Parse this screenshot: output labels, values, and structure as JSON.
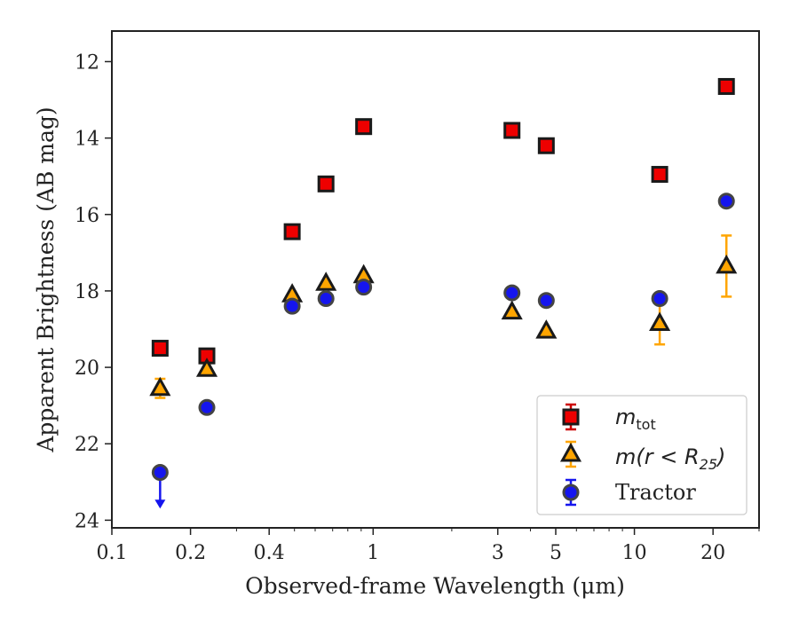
{
  "chart_data": {
    "type": "scatter",
    "title": "",
    "xlabel": "Observed-frame Wavelength (μm)",
    "ylabel": "Apparent Brightness (AB mag)",
    "x_scale": "log",
    "xlim": [
      0.1,
      30
    ],
    "ylim": [
      24.2,
      11.2
    ],
    "y_inverted": true,
    "grid": false,
    "legend_position": "lower-right",
    "x_ticks": [
      {
        "value": 0.1,
        "label": "0.1"
      },
      {
        "value": 0.2,
        "label": "0.2"
      },
      {
        "value": 0.4,
        "label": "0.4"
      },
      {
        "value": 1,
        "label": "1"
      },
      {
        "value": 3,
        "label": "3"
      },
      {
        "value": 5,
        "label": "5"
      },
      {
        "value": 10,
        "label": "10"
      },
      {
        "value": 20,
        "label": "20"
      }
    ],
    "y_ticks": [
      {
        "value": 12,
        "label": "12"
      },
      {
        "value": 14,
        "label": "14"
      },
      {
        "value": 16,
        "label": "16"
      },
      {
        "value": 18,
        "label": "18"
      },
      {
        "value": 20,
        "label": "20"
      },
      {
        "value": 22,
        "label": "22"
      },
      {
        "value": 24,
        "label": "24"
      }
    ],
    "series": [
      {
        "name_main": "m",
        "name_sub": "tot",
        "marker": "square",
        "color": "#ee0000",
        "error_color": "#cc0000",
        "points": [
          {
            "x": 0.153,
            "y": 19.5
          },
          {
            "x": 0.231,
            "y": 19.7
          },
          {
            "x": 0.49,
            "y": 16.45
          },
          {
            "x": 0.66,
            "y": 15.2
          },
          {
            "x": 0.92,
            "y": 13.7
          },
          {
            "x": 3.4,
            "y": 13.8
          },
          {
            "x": 4.6,
            "y": 14.2
          },
          {
            "x": 12.5,
            "y": 14.95
          },
          {
            "x": 22.5,
            "y": 12.65
          }
        ]
      },
      {
        "name_main": "m(r < R",
        "name_sub": "25",
        "name_tail": ")",
        "marker": "triangle",
        "color": "#ffa500",
        "error_color": "#ffa500",
        "points": [
          {
            "x": 0.153,
            "y": 20.55,
            "yerr": 0.25
          },
          {
            "x": 0.231,
            "y": 20.05
          },
          {
            "x": 0.49,
            "y": 18.1
          },
          {
            "x": 0.66,
            "y": 17.8
          },
          {
            "x": 0.92,
            "y": 17.6
          },
          {
            "x": 3.4,
            "y": 18.55
          },
          {
            "x": 4.6,
            "y": 19.05
          },
          {
            "x": 12.5,
            "y": 18.85,
            "yerr": 0.55
          },
          {
            "x": 22.5,
            "y": 17.35,
            "yerr": 0.8
          }
        ]
      },
      {
        "name_main": "Tractor",
        "marker": "circle",
        "color": "#1515ee",
        "error_color": "#1515ee",
        "points": [
          {
            "x": 0.153,
            "y": 22.75,
            "upper_limit": true
          },
          {
            "x": 0.231,
            "y": 21.05
          },
          {
            "x": 0.49,
            "y": 18.4
          },
          {
            "x": 0.66,
            "y": 18.2
          },
          {
            "x": 0.92,
            "y": 17.9
          },
          {
            "x": 3.4,
            "y": 18.05
          },
          {
            "x": 4.6,
            "y": 18.25
          },
          {
            "x": 12.5,
            "y": 18.2
          },
          {
            "x": 22.5,
            "y": 15.65
          }
        ]
      }
    ]
  }
}
